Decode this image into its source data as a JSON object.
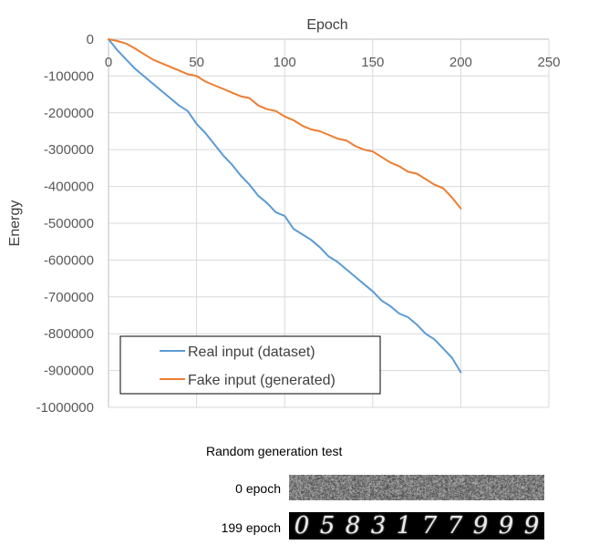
{
  "chart_data": {
    "type": "line",
    "title": "",
    "xlabel": "Epoch",
    "ylabel": "Energy",
    "xlim": [
      0,
      250
    ],
    "ylim": [
      -1000000,
      0
    ],
    "x_ticks": [
      0,
      50,
      100,
      150,
      200,
      250
    ],
    "y_ticks": [
      0,
      -100000,
      -200000,
      -300000,
      -400000,
      -500000,
      -600000,
      -700000,
      -800000,
      -900000,
      -1000000
    ],
    "x_axis_position": "top",
    "grid": true,
    "legend_placement": "bottom-left",
    "series": [
      {
        "name": "Real input (dataset)",
        "color": "#5B9BD5",
        "x": [
          0,
          5,
          10,
          15,
          20,
          25,
          30,
          35,
          40,
          45,
          50,
          55,
          60,
          65,
          70,
          75,
          80,
          85,
          90,
          95,
          100,
          105,
          110,
          115,
          120,
          125,
          130,
          135,
          140,
          145,
          150,
          155,
          160,
          165,
          170,
          175,
          180,
          185,
          190,
          195,
          200
        ],
        "y": [
          0,
          -30000,
          -55000,
          -80000,
          -100000,
          -120000,
          -140000,
          -160000,
          -180000,
          -195000,
          -230000,
          -255000,
          -285000,
          -315000,
          -340000,
          -370000,
          -395000,
          -425000,
          -445000,
          -470000,
          -480000,
          -515000,
          -530000,
          -545000,
          -565000,
          -590000,
          -605000,
          -625000,
          -645000,
          -665000,
          -685000,
          -710000,
          -725000,
          -745000,
          -755000,
          -775000,
          -800000,
          -815000,
          -840000,
          -865000,
          -905000
        ]
      },
      {
        "name": "Fake input (generated)",
        "color": "#ED7D31",
        "x": [
          0,
          5,
          10,
          15,
          20,
          25,
          30,
          35,
          40,
          45,
          50,
          55,
          60,
          65,
          70,
          75,
          80,
          85,
          90,
          95,
          100,
          105,
          110,
          115,
          120,
          125,
          130,
          135,
          140,
          145,
          150,
          155,
          160,
          165,
          170,
          175,
          180,
          185,
          190,
          195,
          200
        ],
        "y": [
          0,
          -5000,
          -12000,
          -25000,
          -40000,
          -55000,
          -65000,
          -75000,
          -85000,
          -95000,
          -100000,
          -115000,
          -125000,
          -135000,
          -145000,
          -155000,
          -160000,
          -180000,
          -190000,
          -195000,
          -210000,
          -220000,
          -235000,
          -245000,
          -250000,
          -260000,
          -270000,
          -275000,
          -290000,
          -300000,
          -305000,
          -320000,
          -335000,
          -345000,
          -360000,
          -365000,
          -380000,
          -395000,
          -405000,
          -430000,
          -460000
        ]
      }
    ]
  },
  "generation": {
    "title": "Random generation test",
    "rows": [
      {
        "label": "0 epoch"
      },
      {
        "label": "199 epoch",
        "digits": [
          "0",
          "5",
          "8",
          "3",
          "1",
          "7",
          "7",
          "9",
          "9",
          "9"
        ]
      }
    ]
  }
}
